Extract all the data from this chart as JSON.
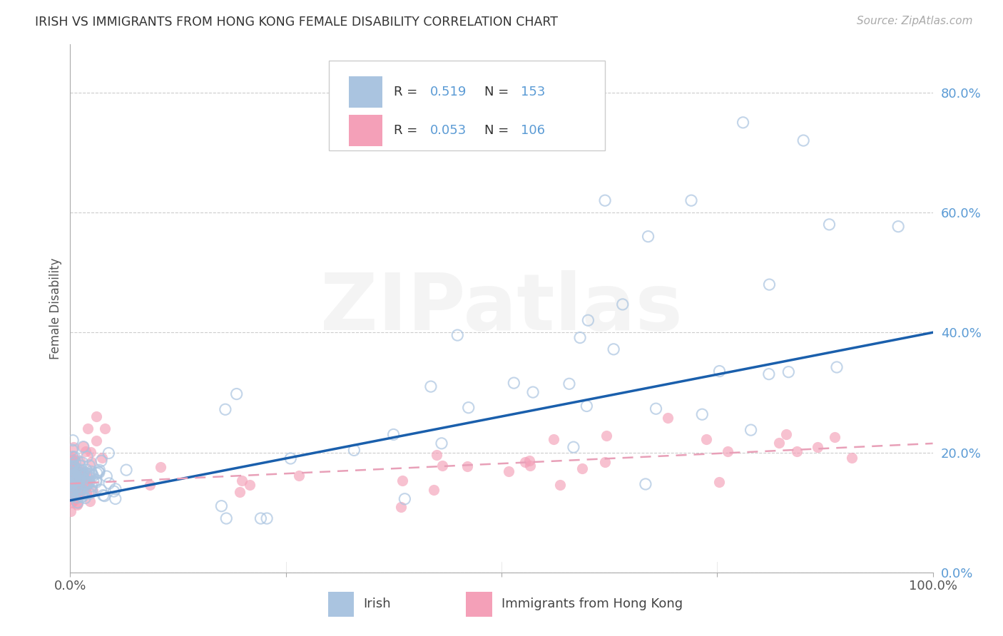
{
  "title": "IRISH VS IMMIGRANTS FROM HONG KONG FEMALE DISABILITY CORRELATION CHART",
  "source": "Source: ZipAtlas.com",
  "ylabel": "Female Disability",
  "watermark": "ZIPatlas",
  "irish_R": 0.519,
  "irish_N": 153,
  "hk_R": 0.053,
  "hk_N": 106,
  "irish_color": "#aac4e0",
  "hk_color": "#f4a0b8",
  "irish_line_color": "#1a5fac",
  "hk_line_color": "#e8a0b8",
  "background_color": "#ffffff",
  "grid_color": "#cccccc",
  "ytick_color": "#5b9bd5",
  "legend_text_color": "#5b9bd5",
  "ylim": [
    0.0,
    0.88
  ],
  "xlim": [
    0.0,
    1.0
  ],
  "yticks": [
    0.0,
    0.2,
    0.4,
    0.6,
    0.8
  ],
  "ytick_labels": [
    "0.0%",
    "20.0%",
    "40.0%",
    "60.0%",
    "80.0%"
  ],
  "xticks": [
    0.0,
    0.25,
    0.5,
    0.75,
    1.0
  ],
  "xtick_labels": [
    "0.0%",
    "",
    "",
    "",
    "100.0%"
  ],
  "irish_line_x0": 0.0,
  "irish_line_x1": 1.0,
  "irish_line_y0": 0.12,
  "irish_line_y1": 0.4,
  "hk_line_x0": 0.0,
  "hk_line_x1": 1.0,
  "hk_line_y0": 0.148,
  "hk_line_y1": 0.215
}
